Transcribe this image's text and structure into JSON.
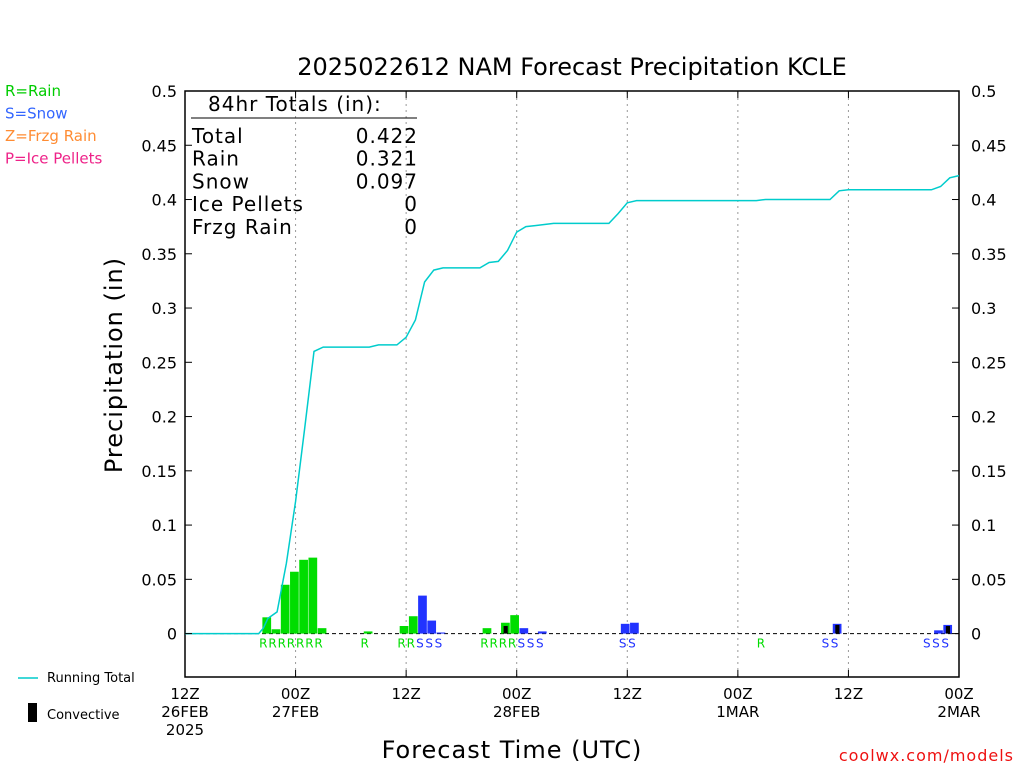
{
  "chart_data": {
    "type": "bar",
    "title": "2025022612 NAM Forecast Precipitation KCLE",
    "xlabel": "Forecast Time (UTC)",
    "ylabel": "Precipitation (in)",
    "ylim": [
      -0.04,
      0.5
    ],
    "y_ticks": [
      0,
      0.05,
      0.1,
      0.15,
      0.2,
      0.25,
      0.3,
      0.35,
      0.4,
      0.45,
      0.5
    ],
    "y_tick_labels": [
      "0",
      "0.05",
      "0.1",
      "0.15",
      "0.2",
      "0.25",
      "0.3",
      "0.35",
      "0.4",
      "0.45",
      "0.5"
    ],
    "xlim_hours": [
      0,
      84
    ],
    "x_ticks": [
      {
        "hour": 0,
        "lines": [
          "12Z",
          "26FEB",
          "2025"
        ]
      },
      {
        "hour": 12,
        "lines": [
          "00Z",
          "27FEB"
        ]
      },
      {
        "hour": 24,
        "lines": [
          "12Z"
        ]
      },
      {
        "hour": 36,
        "lines": [
          "00Z",
          "28FEB"
        ]
      },
      {
        "hour": 48,
        "lines": [
          "12Z"
        ]
      },
      {
        "hour": 60,
        "lines": [
          "00Z",
          "1MAR"
        ]
      },
      {
        "hour": 72,
        "lines": [
          "12Z"
        ]
      },
      {
        "hour": 84,
        "lines": [
          "00Z",
          "2MAR"
        ]
      }
    ],
    "grid": "vertical dotted at 12-hour ticks",
    "legend": {
      "precip_types": [
        {
          "label": "R=Rain",
          "color": "#00cc00"
        },
        {
          "label": "S=Snow",
          "color": "#3366ff"
        },
        {
          "label": "Z=Frzg Rain",
          "color": "#ff8c33"
        },
        {
          "label": "P=Ice Pellets",
          "color": "#ee2288"
        }
      ],
      "running_total_label": "Running Total",
      "convective_label": "Convective"
    },
    "totals_box": {
      "heading": "84hr Totals (in):",
      "rows": [
        {
          "label": "Total",
          "value": "0.422"
        },
        {
          "label": "Rain",
          "value": "0.321"
        },
        {
          "label": "Snow",
          "value": "0.097"
        },
        {
          "label": "Ice Pellets",
          "value": "0"
        },
        {
          "label": "Frzg Rain",
          "value": "0"
        }
      ]
    },
    "colors": {
      "rain": "#00dd00",
      "snow": "#2233ff",
      "running_total": "#00cccc",
      "convective": "#000000"
    },
    "bars": [
      {
        "hour": 8.9,
        "value": 0.015,
        "type": "rain"
      },
      {
        "hour": 9.9,
        "value": 0.004,
        "type": "rain"
      },
      {
        "hour": 10.9,
        "value": 0.045,
        "type": "rain"
      },
      {
        "hour": 11.9,
        "value": 0.057,
        "type": "rain"
      },
      {
        "hour": 12.9,
        "value": 0.068,
        "type": "rain"
      },
      {
        "hour": 13.9,
        "value": 0.07,
        "type": "rain"
      },
      {
        "hour": 14.9,
        "value": 0.005,
        "type": "rain"
      },
      {
        "hour": 19.9,
        "value": 0.002,
        "type": "rain"
      },
      {
        "hour": 23.8,
        "value": 0.007,
        "type": "rain"
      },
      {
        "hour": 24.8,
        "value": 0.016,
        "type": "rain"
      },
      {
        "hour": 25.8,
        "value": 0.035,
        "type": "snow"
      },
      {
        "hour": 26.8,
        "value": 0.012,
        "type": "snow"
      },
      {
        "hour": 27.8,
        "value": 0.001,
        "type": "snow"
      },
      {
        "hour": 32.8,
        "value": 0.005,
        "type": "rain"
      },
      {
        "hour": 34.8,
        "value": 0.01,
        "type": "rain",
        "convective": 0.007
      },
      {
        "hour": 35.8,
        "value": 0.017,
        "type": "rain"
      },
      {
        "hour": 36.8,
        "value": 0.005,
        "type": "snow"
      },
      {
        "hour": 38.8,
        "value": 0.002,
        "type": "snow"
      },
      {
        "hour": 47.8,
        "value": 0.009,
        "type": "snow"
      },
      {
        "hour": 48.8,
        "value": 0.01,
        "type": "snow"
      },
      {
        "hour": 70.8,
        "value": 0.009,
        "type": "snow",
        "convective": 0.008
      },
      {
        "hour": 81.8,
        "value": 0.003,
        "type": "snow"
      },
      {
        "hour": 82.8,
        "value": 0.008,
        "type": "snow",
        "convective": 0.007
      }
    ],
    "type_letters": [
      {
        "hour": 9,
        "text": "R",
        "type": "rain"
      },
      {
        "hour": 10,
        "text": "R",
        "type": "rain"
      },
      {
        "hour": 11,
        "text": "R",
        "type": "rain"
      },
      {
        "hour": 12,
        "text": "R",
        "type": "rain"
      },
      {
        "hour": 13,
        "text": "R",
        "type": "rain"
      },
      {
        "hour": 14,
        "text": "R",
        "type": "rain"
      },
      {
        "hour": 15,
        "text": "R",
        "type": "rain"
      },
      {
        "hour": 20,
        "text": "R",
        "type": "rain"
      },
      {
        "hour": 24,
        "text": "R",
        "type": "rain"
      },
      {
        "hour": 25,
        "text": "R",
        "type": "rain"
      },
      {
        "hour": 26,
        "text": "S",
        "type": "snow"
      },
      {
        "hour": 27,
        "text": "S",
        "type": "snow"
      },
      {
        "hour": 28,
        "text": "S",
        "type": "snow"
      },
      {
        "hour": 33,
        "text": "R",
        "type": "rain"
      },
      {
        "hour": 34,
        "text": "R",
        "type": "rain"
      },
      {
        "hour": 35,
        "text": "R",
        "type": "rain"
      },
      {
        "hour": 36,
        "text": "R",
        "type": "rain"
      },
      {
        "hour": 37,
        "text": "S",
        "type": "snow"
      },
      {
        "hour": 38,
        "text": "S",
        "type": "snow"
      },
      {
        "hour": 39,
        "text": "S",
        "type": "snow"
      },
      {
        "hour": 48,
        "text": "S",
        "type": "snow"
      },
      {
        "hour": 49,
        "text": "S",
        "type": "snow"
      },
      {
        "hour": 63,
        "text": "R",
        "type": "rain"
      },
      {
        "hour": 70,
        "text": "S",
        "type": "snow"
      },
      {
        "hour": 71,
        "text": "S",
        "type": "snow"
      },
      {
        "hour": 81,
        "text": "S",
        "type": "snow"
      },
      {
        "hour": 82,
        "text": "S",
        "type": "snow"
      },
      {
        "hour": 83,
        "text": "S",
        "type": "snow"
      }
    ],
    "running_total": [
      [
        0,
        0
      ],
      [
        8,
        0
      ],
      [
        8.5,
        0.005
      ],
      [
        9,
        0.014
      ],
      [
        10,
        0.02
      ],
      [
        11,
        0.065
      ],
      [
        12,
        0.122
      ],
      [
        13,
        0.19
      ],
      [
        14,
        0.26
      ],
      [
        15,
        0.264
      ],
      [
        20,
        0.264
      ],
      [
        21,
        0.266
      ],
      [
        23,
        0.266
      ],
      [
        24,
        0.273
      ],
      [
        25,
        0.289
      ],
      [
        26,
        0.324
      ],
      [
        27,
        0.335
      ],
      [
        28,
        0.337
      ],
      [
        32,
        0.337
      ],
      [
        33,
        0.342
      ],
      [
        34,
        0.343
      ],
      [
        35,
        0.353
      ],
      [
        36,
        0.37
      ],
      [
        37,
        0.375
      ],
      [
        38,
        0.376
      ],
      [
        39,
        0.377
      ],
      [
        40,
        0.378
      ],
      [
        46,
        0.378
      ],
      [
        47,
        0.387
      ],
      [
        48,
        0.397
      ],
      [
        49,
        0.399
      ],
      [
        62,
        0.399
      ],
      [
        63,
        0.4
      ],
      [
        70,
        0.4
      ],
      [
        71,
        0.408
      ],
      [
        72,
        0.409
      ],
      [
        81,
        0.409
      ],
      [
        82,
        0.412
      ],
      [
        83,
        0.42
      ],
      [
        84,
        0.422
      ]
    ]
  },
  "credit": "coolwx.com/models"
}
